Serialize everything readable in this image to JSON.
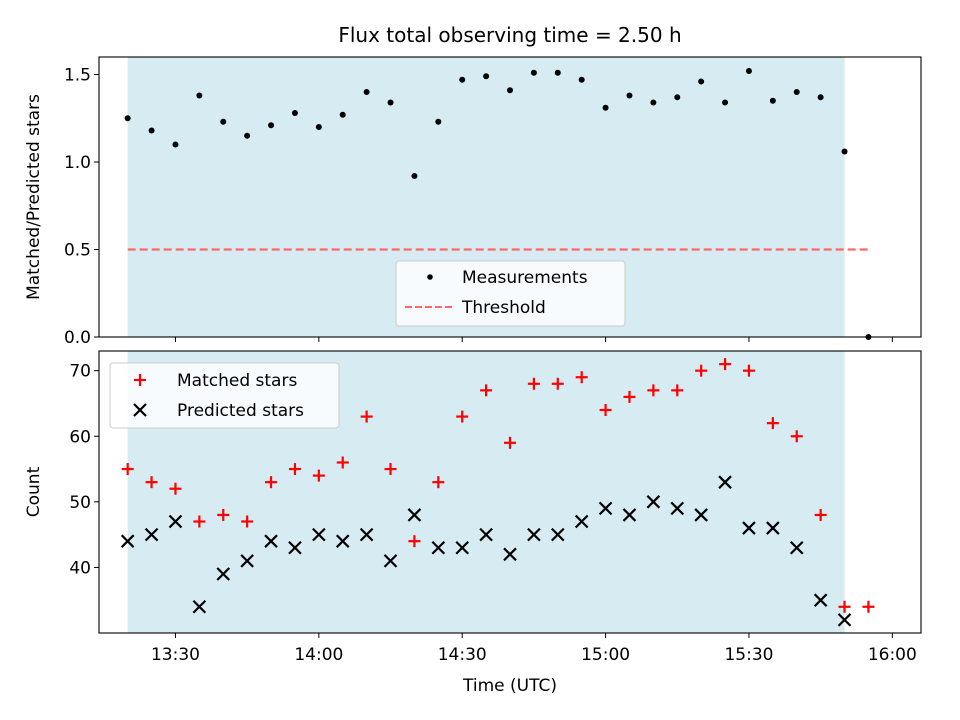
{
  "chart_data": [
    {
      "type": "scatter",
      "title": "Flux total observing time = 2.50 h",
      "ylabel": "Matched/Predicted stars",
      "xlabel": "",
      "xlim": [
        "13:14",
        "16:06"
      ],
      "ylim": [
        0,
        1.6
      ],
      "yticks": [
        0.0,
        0.5,
        1.0,
        1.5
      ],
      "ytick_labels": [
        "0.0",
        "0.5",
        "1.0",
        "1.5"
      ],
      "grid": false,
      "legend_position": "lower-center",
      "shaded_span": [
        "13:20",
        "15:50"
      ],
      "shaded_color": "#add8e6",
      "series": [
        {
          "name": "Measurements",
          "marker": "dot",
          "color": "#000000",
          "x": [
            "13:20",
            "13:25",
            "13:30",
            "13:35",
            "13:40",
            "13:45",
            "13:50",
            "13:55",
            "14:00",
            "14:05",
            "14:10",
            "14:15",
            "14:20",
            "14:25",
            "14:30",
            "14:35",
            "14:40",
            "14:45",
            "14:50",
            "14:55",
            "15:00",
            "15:05",
            "15:10",
            "15:15",
            "15:20",
            "15:25",
            "15:30",
            "15:35",
            "15:40",
            "15:45",
            "15:50",
            "15:55"
          ],
          "y": [
            1.25,
            1.18,
            1.1,
            1.38,
            1.23,
            1.15,
            1.21,
            1.28,
            1.2,
            1.27,
            1.4,
            1.34,
            0.92,
            1.23,
            1.47,
            1.49,
            1.41,
            1.51,
            1.51,
            1.47,
            1.31,
            1.38,
            1.34,
            1.37,
            1.46,
            1.34,
            1.52,
            1.35,
            1.4,
            1.37,
            1.06,
            0.0
          ]
        },
        {
          "name": "Threshold",
          "style": "dashed",
          "color": "#ff6666",
          "x": [
            "13:20",
            "15:55"
          ],
          "y": [
            0.5,
            0.5
          ]
        }
      ]
    },
    {
      "type": "scatter",
      "title": "",
      "xlabel": "Time (UTC)",
      "ylabel": "Count",
      "xlim": [
        "13:14",
        "16:06"
      ],
      "ylim": [
        30,
        73
      ],
      "xticks": [
        "13:30",
        "14:00",
        "14:30",
        "15:00",
        "15:30",
        "16:00"
      ],
      "yticks": [
        40,
        50,
        60,
        70
      ],
      "ytick_labels": [
        "40",
        "50",
        "60",
        "70"
      ],
      "grid": false,
      "legend_position": "upper-left",
      "shaded_span": [
        "13:20",
        "15:50"
      ],
      "shaded_color": "#add8e6",
      "series": [
        {
          "name": "Matched stars",
          "marker": "plus",
          "color": "#ff0000",
          "x": [
            "13:20",
            "13:25",
            "13:30",
            "13:35",
            "13:40",
            "13:45",
            "13:50",
            "13:55",
            "14:00",
            "14:05",
            "14:10",
            "14:15",
            "14:20",
            "14:25",
            "14:30",
            "14:35",
            "14:40",
            "14:45",
            "14:50",
            "14:55",
            "15:00",
            "15:05",
            "15:10",
            "15:15",
            "15:20",
            "15:25",
            "15:30",
            "15:35",
            "15:40",
            "15:45",
            "15:50",
            "15:55"
          ],
          "y": [
            55,
            53,
            52,
            47,
            48,
            47,
            53,
            55,
            54,
            56,
            63,
            55,
            44,
            53,
            63,
            67,
            59,
            68,
            68,
            69,
            64,
            66,
            67,
            67,
            70,
            71,
            70,
            62,
            60,
            48,
            34,
            34
          ]
        },
        {
          "name": "Predicted stars",
          "marker": "x",
          "color": "#000000",
          "x": [
            "13:20",
            "13:25",
            "13:30",
            "13:35",
            "13:40",
            "13:45",
            "13:50",
            "13:55",
            "14:00",
            "14:05",
            "14:10",
            "14:15",
            "14:20",
            "14:25",
            "14:30",
            "14:35",
            "14:40",
            "14:45",
            "14:50",
            "14:55",
            "15:00",
            "15:05",
            "15:10",
            "15:15",
            "15:20",
            "15:25",
            "15:30",
            "15:35",
            "15:40",
            "15:45",
            "15:50"
          ],
          "y": [
            44,
            45,
            47,
            34,
            39,
            41,
            44,
            43,
            45,
            44,
            45,
            41,
            48,
            43,
            43,
            45,
            42,
            45,
            45,
            47,
            49,
            48,
            50,
            49,
            48,
            53,
            46,
            46,
            43,
            35,
            32
          ]
        }
      ]
    }
  ]
}
